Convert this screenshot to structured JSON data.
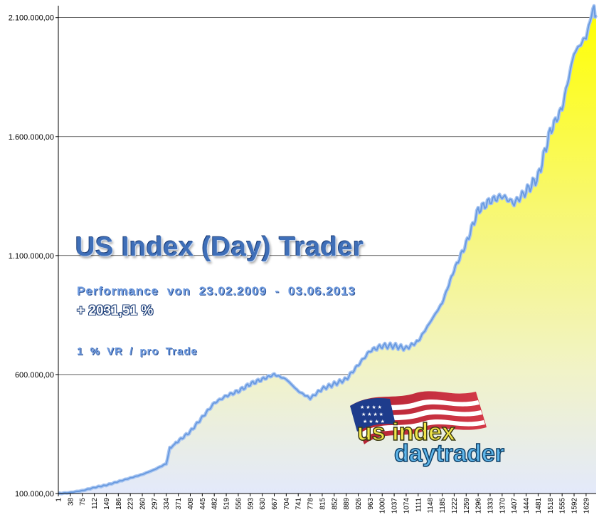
{
  "chart_data": {
    "type": "area",
    "title": "US Index (Day) Trader",
    "subtitle": "Performance  von  23.02.2009 - 03.06.2013",
    "performance": "+ 2031,51 %",
    "risk_note": "1 % VR / pro Trade",
    "ylim": [
      100000,
      2150000
    ],
    "xlim": [
      1,
      1660
    ],
    "y_ticks": [
      {
        "value": 100000,
        "label": "100.000,00"
      },
      {
        "value": 600000,
        "label": "600.000,00"
      },
      {
        "value": 1100000,
        "label": "1.100.000,00"
      },
      {
        "value": 1600000,
        "label": "1.600.000,00"
      },
      {
        "value": 2100000,
        "label": "2.100.000,00"
      }
    ],
    "x_ticks": [
      "1",
      "38",
      "75",
      "112",
      "149",
      "186",
      "223",
      "260",
      "297",
      "334",
      "371",
      "408",
      "445",
      "482",
      "519",
      "556",
      "593",
      "630",
      "667",
      "704",
      "741",
      "778",
      "815",
      "852",
      "889",
      "926",
      "963",
      "1000",
      "1037",
      "1074",
      "1111",
      "1148",
      "1185",
      "1222",
      "1259",
      "1296",
      "1333",
      "1370",
      "1407",
      "1444",
      "1481",
      "1518",
      "1555",
      "1592",
      "1629"
    ],
    "x": [
      1,
      38,
      75,
      112,
      149,
      186,
      223,
      260,
      297,
      334,
      345,
      371,
      408,
      445,
      482,
      519,
      556,
      593,
      630,
      667,
      704,
      741,
      778,
      815,
      852,
      889,
      926,
      963,
      1000,
      1037,
      1074,
      1111,
      1148,
      1185,
      1222,
      1259,
      1296,
      1333,
      1370,
      1407,
      1444,
      1481,
      1518,
      1555,
      1592,
      1629,
      1650,
      1660
    ],
    "values": [
      100000,
      104000,
      112000,
      125000,
      135000,
      150000,
      165000,
      180000,
      200000,
      225000,
      290000,
      320000,
      360000,
      420000,
      480000,
      510000,
      530000,
      560000,
      580000,
      600000,
      580000,
      530000,
      500000,
      540000,
      560000,
      580000,
      640000,
      700000,
      720000,
      720000,
      710000,
      740000,
      820000,
      900000,
      1040000,
      1150000,
      1290000,
      1330000,
      1350000,
      1320000,
      1370000,
      1430000,
      1620000,
      1720000,
      1950000,
      2020000,
      2130000,
      2110000
    ],
    "grid": true
  },
  "logo": {
    "line1": "us index",
    "line2": "daytrader"
  },
  "colors": {
    "line": "#6a9be0",
    "fill_top": "#ffff00",
    "fill_bottom": "#e3e9fb",
    "grid": "#000000"
  }
}
